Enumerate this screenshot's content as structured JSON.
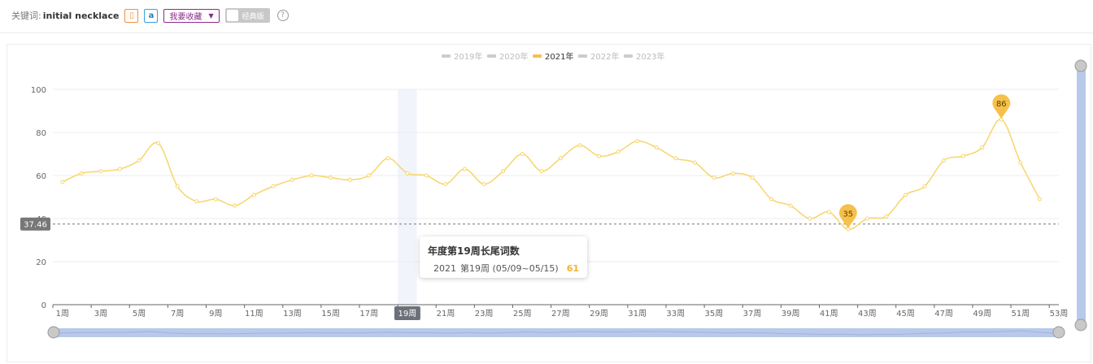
{
  "header": {
    "keyword_label": "关键词:",
    "keyword_value": "initial necklace",
    "favorite_label": "我要收藏",
    "favorite_arrow": "▼",
    "classic_label": "经典版",
    "help_glyph": "?",
    "amazon_glyph": "a",
    "doc_glyph": "▯"
  },
  "tooltip": {
    "title": "年度第19周长尾词数",
    "series": "2021",
    "period": "第19周 (05/09~05/15)",
    "value": "61"
  },
  "chart_data": {
    "type": "line",
    "legend": [
      {
        "name": "2019年",
        "color": "#cccccc",
        "active": false
      },
      {
        "name": "2020年",
        "color": "#cccccc",
        "active": false
      },
      {
        "name": "2021年",
        "color": "#f7c04a",
        "active": true
      },
      {
        "name": "2022年",
        "color": "#cccccc",
        "active": false
      },
      {
        "name": "2023年",
        "color": "#cccccc",
        "active": false
      }
    ],
    "legend_position": "top-center",
    "series": [
      {
        "name": "2021年",
        "color": "#f7d56a",
        "values": [
          57,
          61,
          62,
          63,
          67,
          75,
          55,
          48,
          49,
          46,
          51,
          55,
          58,
          60,
          59,
          58,
          60,
          68,
          61,
          60,
          56,
          63,
          56,
          62,
          70,
          62,
          68,
          74,
          69,
          71,
          76,
          73,
          68,
          66,
          59,
          61,
          59,
          49,
          46,
          40,
          43,
          35,
          40,
          41,
          51,
          55,
          67,
          69,
          73,
          86,
          66,
          49
        ]
      }
    ],
    "x_tick_labels": [
      "1周",
      "3周",
      "5周",
      "7周",
      "9周",
      "11周",
      "13周",
      "15周",
      "17周",
      "19周",
      "21周",
      "23周",
      "25周",
      "27周",
      "29周",
      "31周",
      "33周",
      "35周",
      "37周",
      "39周",
      "41周",
      "43周",
      "45周",
      "47周",
      "49周",
      "51周",
      "53周"
    ],
    "x_week_count": 53,
    "y_ticks": [
      "0",
      "20",
      "40",
      "60",
      "80",
      "100"
    ],
    "ylim": [
      0,
      100
    ],
    "grid": "horizontal",
    "average_line": {
      "value": 37.46,
      "label": "37.46"
    },
    "highlight_week": {
      "week": 19,
      "label": "19周"
    },
    "marker_pins": [
      {
        "week": 42,
        "value": 35,
        "label": "35"
      },
      {
        "week": 50,
        "value": 86,
        "label": "86"
      }
    ],
    "colors": {
      "line": "#f7d56a",
      "pin": "#f7c04a",
      "slider": "#b8c9ea"
    }
  }
}
